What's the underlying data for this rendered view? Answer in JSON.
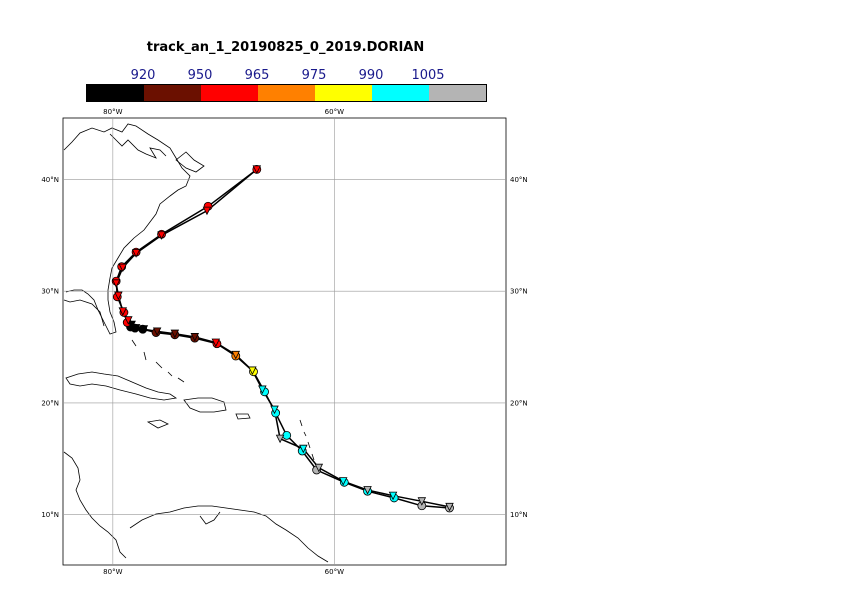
{
  "title": "track_an_1_20190825_0_2019.DORIAN",
  "colorbar": {
    "labels": [
      "920",
      "950",
      "965",
      "975",
      "990",
      "1005"
    ],
    "colors": [
      "#000000",
      "#6b1000",
      "#ff0000",
      "#ff8000",
      "#ffff00",
      "#00ffff",
      "#b4b4b4"
    ]
  },
  "map": {
    "lon_range": [
      -84.5,
      -44.5
    ],
    "lat_range": [
      5.5,
      45.5
    ],
    "lon_gridlines": [
      -80,
      -60
    ],
    "lat_gridlines": [
      10,
      20,
      30,
      40
    ],
    "lon_labels": [
      "80°W",
      "60°W"
    ],
    "lat_labels": [
      "10°N",
      "20°N",
      "30°N",
      "40°N"
    ]
  },
  "chart_data": {
    "type": "track",
    "tracks": [
      {
        "points": [
          {
            "lon": -49.6,
            "lat": 10.6,
            "color": "#b4b4b4"
          },
          {
            "lon": -52.1,
            "lat": 10.8,
            "color": "#b4b4b4"
          },
          {
            "lon": -54.6,
            "lat": 11.5,
            "color": "#00ffff"
          },
          {
            "lon": -57.0,
            "lat": 12.1,
            "color": "#00ffff"
          },
          {
            "lon": -59.1,
            "lat": 12.9,
            "color": "#00ffff"
          },
          {
            "lon": -61.6,
            "lat": 14.0,
            "color": "#b4b4b4"
          },
          {
            "lon": -62.9,
            "lat": 15.7,
            "color": "#00ffff"
          },
          {
            "lon": -64.3,
            "lat": 17.1,
            "color": "#00ffff"
          },
          {
            "lon": -65.3,
            "lat": 19.1,
            "color": "#00ffff"
          },
          {
            "lon": -66.3,
            "lat": 21.0,
            "color": "#00ffff"
          },
          {
            "lon": -67.3,
            "lat": 22.8,
            "color": "#ffff00"
          },
          {
            "lon": -68.9,
            "lat": 24.2,
            "color": "#ff8000"
          },
          {
            "lon": -70.6,
            "lat": 25.3,
            "color": "#ff0000"
          },
          {
            "lon": -72.6,
            "lat": 25.8,
            "color": "#6b1000"
          },
          {
            "lon": -74.4,
            "lat": 26.1,
            "color": "#6b1000"
          },
          {
            "lon": -76.1,
            "lat": 26.3,
            "color": "#6b1000"
          },
          {
            "lon": -77.3,
            "lat": 26.6,
            "color": "#000000"
          },
          {
            "lon": -78.0,
            "lat": 26.7,
            "color": "#000000"
          },
          {
            "lon": -78.4,
            "lat": 26.8,
            "color": "#000000"
          },
          {
            "lon": -78.7,
            "lat": 27.2,
            "color": "#ff0000"
          },
          {
            "lon": -79.0,
            "lat": 28.1,
            "color": "#ff0000"
          },
          {
            "lon": -79.6,
            "lat": 29.5,
            "color": "#ff0000"
          },
          {
            "lon": -79.7,
            "lat": 30.9,
            "color": "#ff0000"
          },
          {
            "lon": -79.2,
            "lat": 32.2,
            "color": "#ff0000"
          },
          {
            "lon": -77.9,
            "lat": 33.5,
            "color": "#ff0000"
          },
          {
            "lon": -75.6,
            "lat": 35.1,
            "color": "#ff0000"
          },
          {
            "lon": -71.4,
            "lat": 37.6,
            "color": "#ff0000"
          },
          {
            "lon": -67.0,
            "lat": 40.9,
            "color": "#ff0000"
          }
        ]
      },
      {
        "points": [
          {
            "lon": -49.6,
            "lat": 10.7,
            "color": "#b4b4b4"
          },
          {
            "lon": -52.1,
            "lat": 11.2,
            "color": "#b4b4b4"
          },
          {
            "lon": -54.7,
            "lat": 11.7,
            "color": "#00ffff"
          },
          {
            "lon": -57.0,
            "lat": 12.2,
            "color": "#b4b4b4"
          },
          {
            "lon": -59.2,
            "lat": 13.0,
            "color": "#00ffff"
          },
          {
            "lon": -61.4,
            "lat": 14.2,
            "color": "#b4b4b4"
          },
          {
            "lon": -62.8,
            "lat": 15.9,
            "color": "#00ffff"
          },
          {
            "lon": -64.9,
            "lat": 16.8,
            "color": "#b4b4b4"
          },
          {
            "lon": -65.4,
            "lat": 19.4,
            "color": "#00ffff"
          },
          {
            "lon": -66.5,
            "lat": 21.2,
            "color": "#00ffff"
          },
          {
            "lon": -67.4,
            "lat": 22.9,
            "color": "#ffff00"
          },
          {
            "lon": -68.9,
            "lat": 24.3,
            "color": "#ff8000"
          },
          {
            "lon": -70.7,
            "lat": 25.4,
            "color": "#ff0000"
          },
          {
            "lon": -72.6,
            "lat": 25.9,
            "color": "#6b1000"
          },
          {
            "lon": -74.4,
            "lat": 26.2,
            "color": "#6b1000"
          },
          {
            "lon": -76.0,
            "lat": 26.4,
            "color": "#6b1000"
          },
          {
            "lon": -77.2,
            "lat": 26.6,
            "color": "#000000"
          },
          {
            "lon": -77.9,
            "lat": 26.7,
            "color": "#000000"
          },
          {
            "lon": -78.3,
            "lat": 27.0,
            "color": "#000000"
          },
          {
            "lon": -78.6,
            "lat": 27.4,
            "color": "#ff0000"
          },
          {
            "lon": -79.1,
            "lat": 28.2,
            "color": "#ff0000"
          },
          {
            "lon": -79.5,
            "lat": 29.6,
            "color": "#ff0000"
          },
          {
            "lon": -79.7,
            "lat": 30.7,
            "color": "#ff0000"
          },
          {
            "lon": -79.1,
            "lat": 32.1,
            "color": "#ff0000"
          },
          {
            "lon": -77.9,
            "lat": 33.4,
            "color": "#ff0000"
          },
          {
            "lon": -75.6,
            "lat": 35.0,
            "color": "#ff0000"
          },
          {
            "lon": -71.5,
            "lat": 37.2,
            "color": "#ff0000"
          },
          {
            "lon": -67.0,
            "lat": 40.9,
            "color": "#ff0000"
          }
        ]
      }
    ]
  }
}
